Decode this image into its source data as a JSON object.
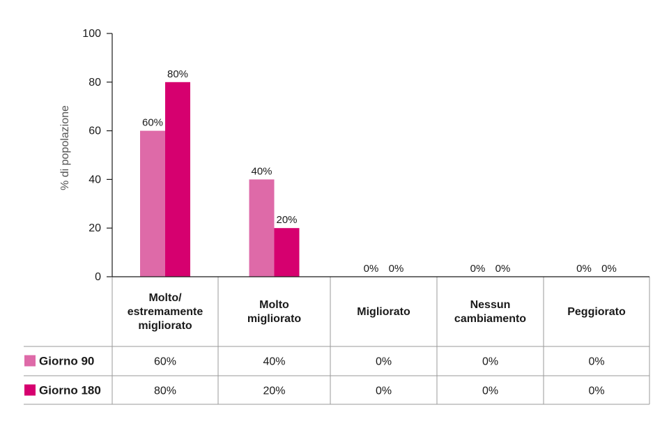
{
  "chart_data": {
    "type": "bar",
    "ylabel": "% di popolazione",
    "ylim": [
      0,
      100
    ],
    "yticks": [
      "0",
      "20",
      "40",
      "60",
      "80",
      "100"
    ],
    "categories": [
      [
        "Molto/",
        "estremamente",
        "migliorato"
      ],
      [
        "Molto",
        "migliorato"
      ],
      [
        "Migliorato"
      ],
      [
        "Nessun",
        "cambiamento"
      ],
      [
        "Peggiorato"
      ]
    ],
    "series": [
      {
        "name": "Giorno 90",
        "color": "#de6aa8",
        "values": [
          60,
          40,
          0,
          0,
          0
        ],
        "labels": [
          "60%",
          "40%",
          "0%",
          "0%",
          "0%"
        ]
      },
      {
        "name": "Giorno 180",
        "color": "#d6006f",
        "values": [
          80,
          20,
          0,
          0,
          0
        ],
        "labels": [
          "80%",
          "20%",
          "0%",
          "0%",
          "0%"
        ]
      }
    ],
    "grid": false,
    "legend": "table-left"
  }
}
